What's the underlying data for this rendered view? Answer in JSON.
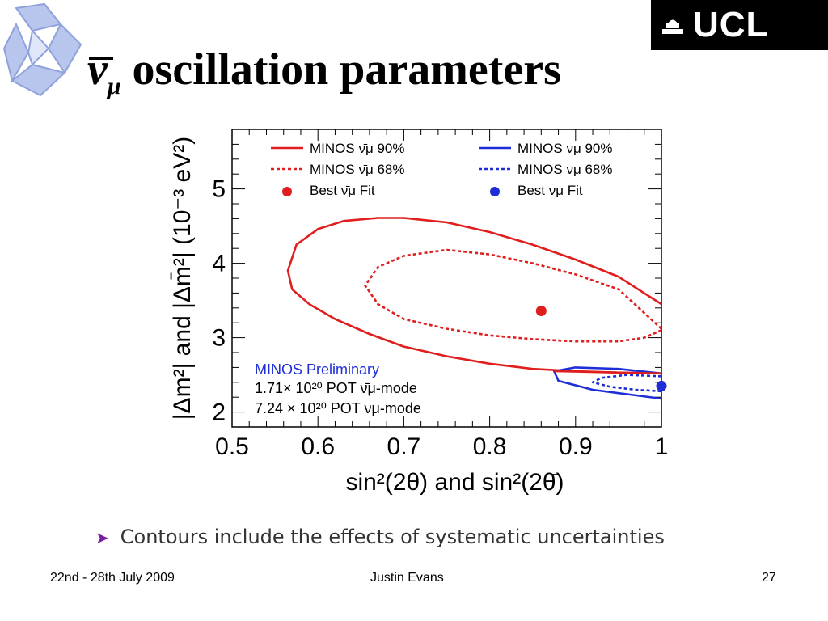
{
  "logo": {
    "name": "UCL",
    "text": "UCL"
  },
  "title": {
    "symbol": "ν",
    "subscript": "μ",
    "text": "oscillation parameters"
  },
  "chart_data": {
    "type": "contour",
    "xlabel": "sin²(2θ) and sin²(2θ̄)",
    "ylabel": "|Δm²| and |Δm̄²| (10⁻³ eV²)",
    "xlim": [
      0.5,
      1.0
    ],
    "ylim": [
      1.8,
      5.8
    ],
    "x_ticks": [
      "0.5",
      "0.6",
      "0.7",
      "0.8",
      "0.9",
      "1"
    ],
    "y_ticks": [
      "2",
      "3",
      "4",
      "5"
    ],
    "legend": [
      {
        "label": "MINOS ν̄μ 90%",
        "color": "#e01e1e",
        "style": "solid"
      },
      {
        "label": "MINOS ν̄μ 68%",
        "color": "#e01e1e",
        "style": "dashed"
      },
      {
        "label": "Best ν̄μ Fit",
        "color": "#e01e1e",
        "style": "marker"
      },
      {
        "label": "MINOS νμ 90%",
        "color": "#1e2ed6",
        "style": "solid"
      },
      {
        "label": "MINOS νμ 68%",
        "color": "#1e2ed6",
        "style": "dashed"
      },
      {
        "label": "Best νμ Fit",
        "color": "#1e2ed6",
        "style": "marker"
      }
    ],
    "annotations": [
      "MINOS Preliminary",
      "1.71× 10²⁰ POT ν̄μ-mode",
      "7.24 × 10²⁰ POT νμ-mode"
    ],
    "best_fits": [
      {
        "name": "Best ν̄μ Fit",
        "x": 0.86,
        "y": 3.36,
        "color": "#e01e1e"
      },
      {
        "name": "Best νμ Fit",
        "x": 1.0,
        "y": 2.35,
        "color": "#1e2ed6"
      }
    ],
    "series": [
      {
        "name": "MINOS ν̄μ 90%",
        "color": "#e01e1e",
        "style": "solid",
        "x": [
          1.0,
          0.95,
          0.9,
          0.85,
          0.8,
          0.75,
          0.7,
          0.67,
          0.63,
          0.6,
          0.575,
          0.565,
          0.57,
          0.59,
          0.62,
          0.66,
          0.7,
          0.75,
          0.8,
          0.85,
          0.9,
          0.95,
          1.0
        ],
        "y": [
          3.45,
          3.82,
          4.05,
          4.25,
          4.42,
          4.55,
          4.61,
          4.61,
          4.57,
          4.46,
          4.25,
          3.9,
          3.65,
          3.45,
          3.25,
          3.05,
          2.88,
          2.75,
          2.65,
          2.58,
          2.55,
          2.53,
          2.52
        ]
      },
      {
        "name": "MINOS ν̄μ 68%",
        "color": "#e01e1e",
        "style": "dashed",
        "x": [
          1.0,
          0.95,
          0.9,
          0.85,
          0.8,
          0.75,
          0.7,
          0.67,
          0.655,
          0.67,
          0.7,
          0.75,
          0.8,
          0.85,
          0.9,
          0.95,
          0.98,
          1.0
        ],
        "y": [
          3.12,
          3.65,
          3.85,
          4.0,
          4.12,
          4.18,
          4.1,
          3.95,
          3.7,
          3.45,
          3.25,
          3.12,
          3.03,
          2.98,
          2.95,
          2.95,
          3.0,
          3.1
        ]
      },
      {
        "name": "MINOS νμ 90%",
        "color": "#1e2ed6",
        "style": "solid",
        "x": [
          1.0,
          0.95,
          0.9,
          0.875,
          0.88,
          0.92,
          0.96,
          1.0
        ],
        "y": [
          2.52,
          2.58,
          2.6,
          2.55,
          2.42,
          2.3,
          2.24,
          2.18
        ]
      },
      {
        "name": "MINOS νμ 68%",
        "color": "#1e2ed6",
        "style": "dashed",
        "x": [
          1.0,
          0.96,
          0.93,
          0.92,
          0.94,
          0.97,
          1.0
        ],
        "y": [
          2.48,
          2.5,
          2.46,
          2.4,
          2.34,
          2.3,
          2.28
        ]
      },
      {
        "name": "red-horizontal",
        "color": "#e01e1e",
        "style": "solid",
        "x": [
          0.875,
          1.0
        ],
        "y": [
          2.55,
          2.52
        ]
      }
    ]
  },
  "bullet": "Contours include the effects of systematic uncertainties",
  "footer": {
    "date": "22nd - 28th July 2009",
    "author": "Justin Evans",
    "page": "27"
  }
}
